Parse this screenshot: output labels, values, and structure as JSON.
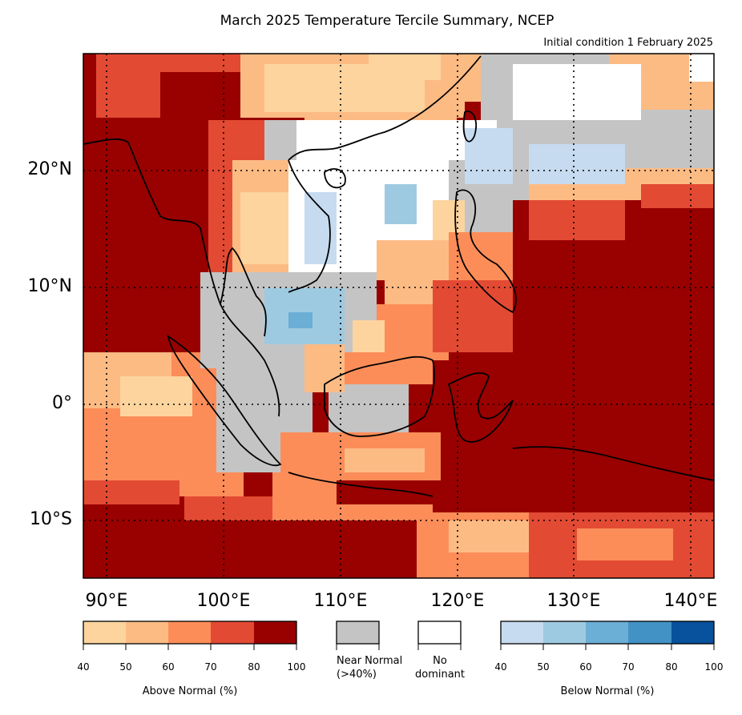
{
  "title": "March 2025 Temperature Tercile Summary, NCEP",
  "subtitle": "Initial condition 1 February 2025",
  "map": {
    "lon_range": [
      88,
      142
    ],
    "lat_range": [
      -15,
      30
    ],
    "lat_labels": [
      "20°N",
      "10°N",
      "0°",
      "10°S"
    ],
    "lat_values": [
      20,
      10,
      0,
      -10
    ],
    "lon_labels": [
      "90°E",
      "100°E",
      "110°E",
      "120°E",
      "130°E",
      "140°E"
    ],
    "lon_values": [
      90,
      100,
      110,
      120,
      130,
      140
    ],
    "gridlines": "dotted",
    "colors": {
      "above": [
        "#fdd49e",
        "#fdbb84",
        "#fc8d59",
        "#e34a33",
        "#990000"
      ],
      "near_normal": "#c4c4c4",
      "no_dominant": "#ffffff",
      "below": [
        "#c6dbef",
        "#9ecae1",
        "#6baed6",
        "#4292c6",
        "#08519c"
      ]
    }
  },
  "legend": {
    "above_normal": {
      "label": "Above Normal (%)",
      "ticks": [
        "40",
        "50",
        "60",
        "70",
        "80",
        "100"
      ]
    },
    "near_normal": {
      "label": "Near Normal\n(>40%)"
    },
    "no_dominant": {
      "label": "No\ndominant"
    },
    "below_normal": {
      "label": "Below Normal (%)",
      "ticks": [
        "40",
        "50",
        "60",
        "70",
        "80",
        "100"
      ]
    }
  }
}
